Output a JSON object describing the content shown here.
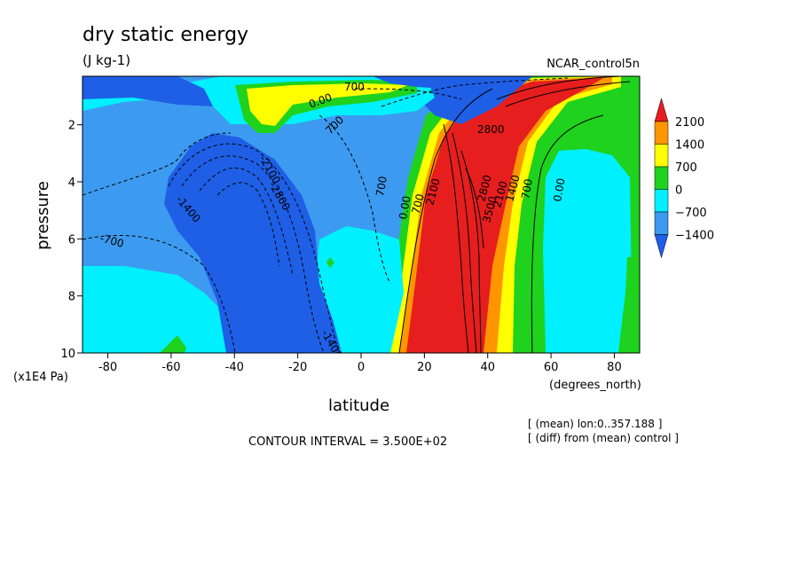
{
  "chart_data": {
    "type": "heatmap",
    "title": "dry static energy",
    "units": "(J kg-1)",
    "dataset": "NCAR_control5n",
    "xlabel": "latitude",
    "xunits": "(degrees_north)",
    "ylabel": "pressure",
    "yunits": "(x1E4 Pa)",
    "xlim": [
      -88,
      88
    ],
    "ylim": [
      10,
      0.3
    ],
    "x_ticks": [
      -80,
      -60,
      -40,
      -20,
      0,
      20,
      40,
      60,
      80
    ],
    "y_ticks": [
      2,
      4,
      6,
      8,
      10
    ],
    "contour_interval": "CONTOUR INTERVAL = 3.500E+02",
    "notes": [
      "[ (mean) lon:0..357.188 ]",
      "[ (diff) from (mean) control ]"
    ],
    "colorbar": {
      "levels": [
        -1400,
        -700,
        0,
        700,
        1400,
        2100
      ],
      "labels": [
        "2100",
        "1400",
        "700",
        "0",
        "−700",
        "−1400"
      ],
      "colors": [
        "#1e5fe6",
        "#3c9bf0",
        "#00f0ff",
        "#1ed21e",
        "#ffff00",
        "#ff9600",
        "#e61e1e"
      ]
    },
    "contour_labels": [
      "700",
      "0.00",
      "700",
      "2800",
      "-2100",
      "-2800",
      "-1400",
      "-700",
      "700",
      "0.00",
      "700",
      "2100",
      "-1400",
      "2800",
      "3500",
      "2100",
      "1400",
      "700",
      "0.00"
    ]
  }
}
